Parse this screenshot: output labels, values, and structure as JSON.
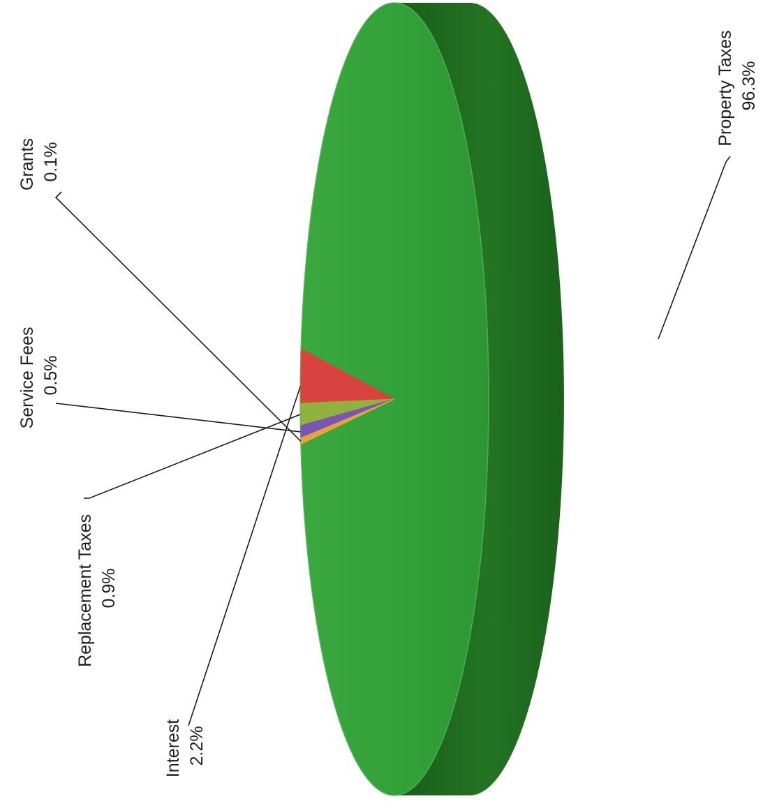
{
  "chart_data": {
    "type": "pie",
    "style": "3d",
    "orientation": "rotated-90-counterclockwise",
    "legend": "none",
    "slices": [
      {
        "label": "Property Taxes",
        "value": 96.3,
        "value_label": "96.3%",
        "color": "#33a039",
        "side_color": "#1f6a1e"
      },
      {
        "label": "Interest",
        "value": 2.2,
        "value_label": "2.2%",
        "color": "#d8433f",
        "side_color": "#8e2422"
      },
      {
        "label": "Replacement Taxes",
        "value": 0.9,
        "value_label": "0.9%",
        "color": "#8fb13d",
        "side_color": "#5a7020"
      },
      {
        "label": "Service Fees",
        "value": 0.5,
        "value_label": "0.5%",
        "color": "#7a56b4",
        "side_color": "#4a3070"
      },
      {
        "label": "Grants",
        "value": 0.1,
        "value_label": "0.1%",
        "color": "#e5a33a",
        "side_color": "#9a6a20"
      }
    ]
  }
}
